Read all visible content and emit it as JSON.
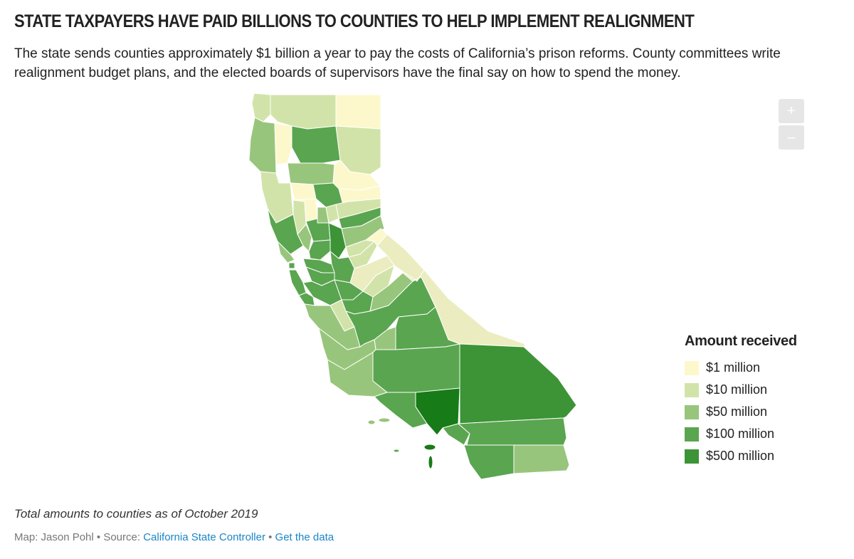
{
  "header": {
    "title": "STATE TAXPAYERS HAVE PAID BILLIONS TO COUNTIES TO HELP IMPLEMENT REALIGNMENT",
    "subtitle": "The state sends counties approximately $1 billion a year to pay the costs of California’s prison reforms. County committees write realignment budget plans, and the elected boards of supervisors have the final say on how to spend the money."
  },
  "map": {
    "region": "California counties",
    "zoom_in_label": "+",
    "zoom_out_label": "–"
  },
  "legend": {
    "title": "Amount received",
    "items": [
      {
        "label": "$1 million",
        "color": "#fcf8cc"
      },
      {
        "label": "$10 million",
        "color": "#d2e3a9"
      },
      {
        "label": "$50 million",
        "color": "#98c57c"
      },
      {
        "label": "$100 million",
        "color": "#5aa550"
      },
      {
        "label": "$500 million",
        "color": "#3c9437"
      }
    ]
  },
  "palette": {
    "c1": "#fcf8cc",
    "c1b": "#ebedc0",
    "c10": "#d2e3a9",
    "c50": "#98c57c",
    "c100": "#5aa550",
    "c500": "#3c9437",
    "top": "#177b17"
  },
  "footer": {
    "note": "Total amounts to counties as of October 2019",
    "credit_prefix": "Map: Jason Pohl • Source: ",
    "source_link": "California State Controller",
    "separator": " • ",
    "data_link": "Get the data"
  }
}
